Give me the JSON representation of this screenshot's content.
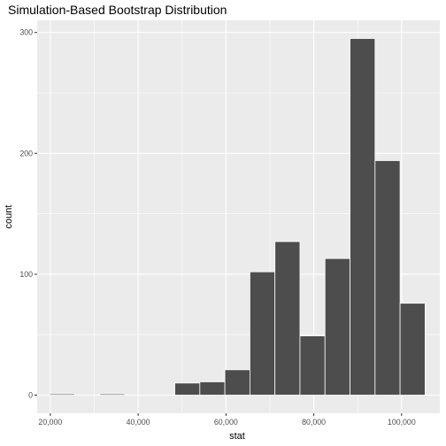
{
  "chart_data": {
    "type": "bar",
    "title": "Simulation-Based Bootstrap Distribution",
    "xlabel": "stat",
    "ylabel": "count",
    "x_tick_labels": [
      "20,000",
      "40,000",
      "60,000",
      "80,000",
      "100,000"
    ],
    "x_ticks": [
      20000,
      40000,
      60000,
      80000,
      100000
    ],
    "y_tick_labels": [
      "0",
      "100",
      "200",
      "300"
    ],
    "y_ticks": [
      0,
      100,
      200,
      300
    ],
    "xlim": [
      17000,
      108700
    ],
    "ylim": [
      -15,
      310
    ],
    "bin_width": 5700,
    "bins": [
      {
        "x": 22700,
        "count": 1
      },
      {
        "x": 28400,
        "count": 0
      },
      {
        "x": 34100,
        "count": 1
      },
      {
        "x": 39800,
        "count": 0
      },
      {
        "x": 45500,
        "count": 0
      },
      {
        "x": 51200,
        "count": 10
      },
      {
        "x": 56900,
        "count": 11
      },
      {
        "x": 62600,
        "count": 21
      },
      {
        "x": 68300,
        "count": 102
      },
      {
        "x": 74000,
        "count": 127
      },
      {
        "x": 79700,
        "count": 49
      },
      {
        "x": 85400,
        "count": 113
      },
      {
        "x": 91100,
        "count": 295
      },
      {
        "x": 96800,
        "count": 194
      },
      {
        "x": 102500,
        "count": 76
      }
    ],
    "colors": {
      "panel_background": "#ebebeb",
      "grid_major": "#ffffff",
      "bar_fill": "#4d4d4d",
      "bar_outline": "#ffffff"
    },
    "grid": true,
    "legend": "none"
  }
}
